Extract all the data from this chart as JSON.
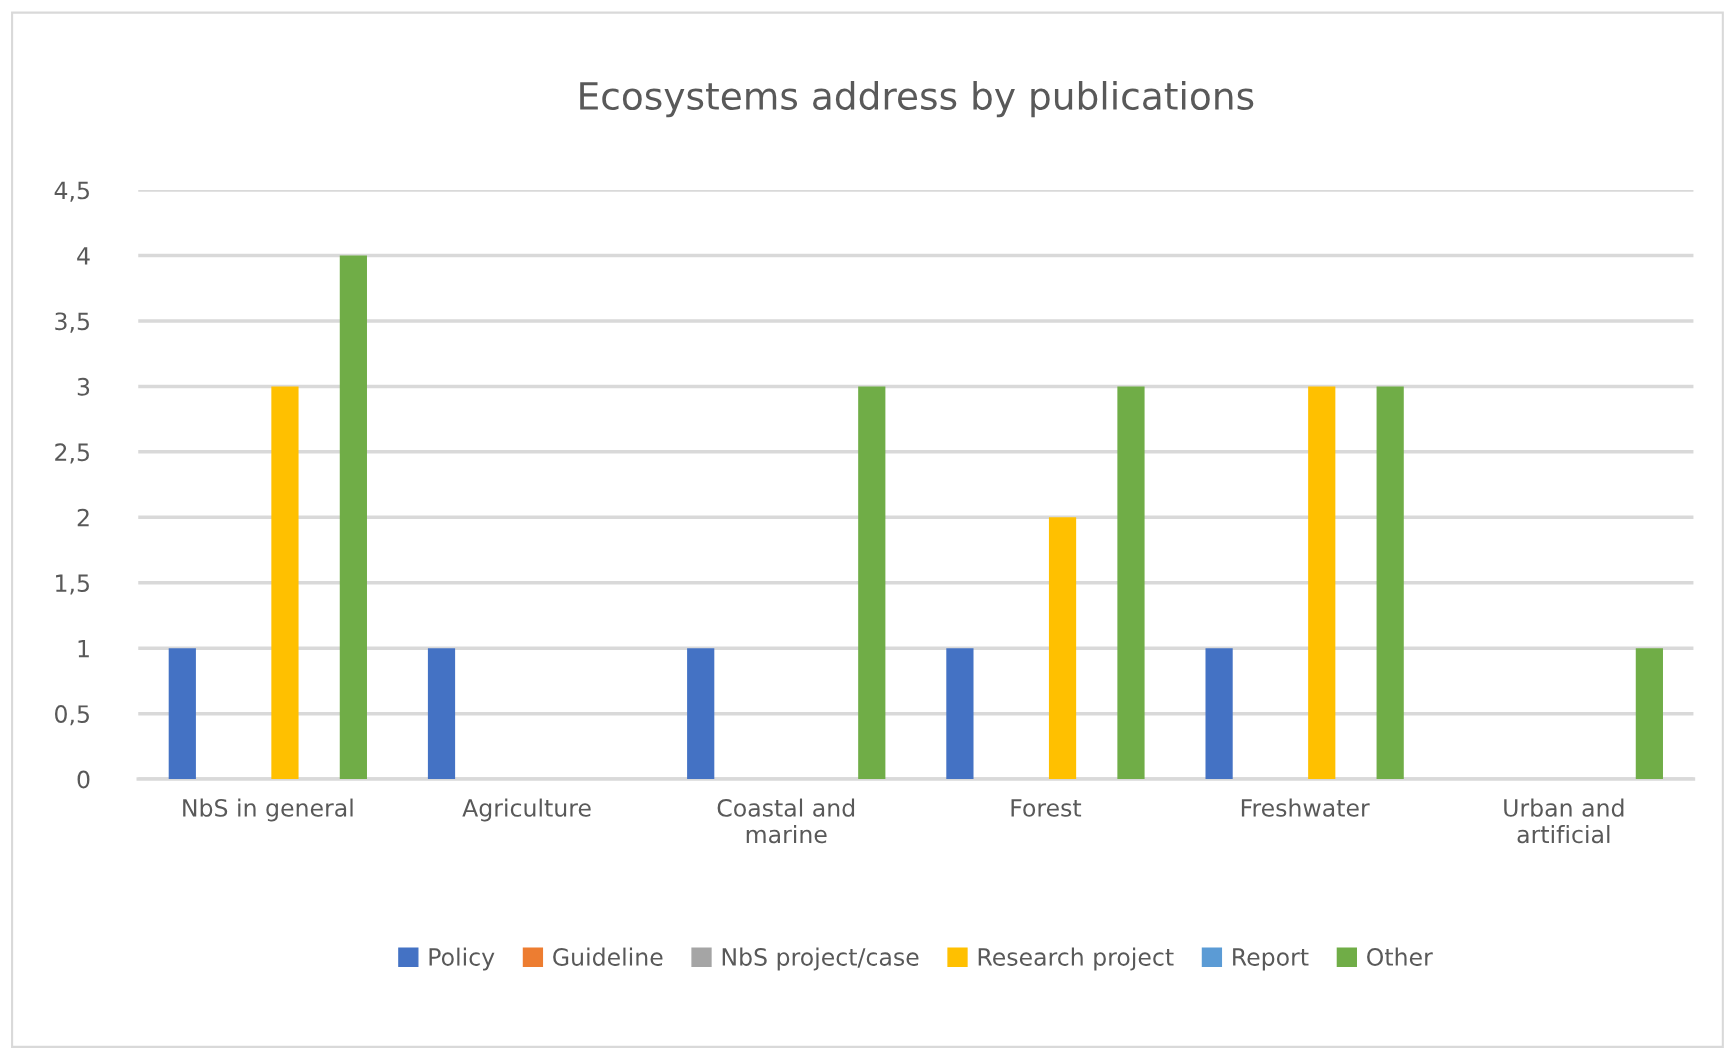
{
  "chart_data": {
    "type": "bar",
    "title": "Ecosystems address by publications",
    "categories": [
      "NbS in general",
      "Agriculture",
      "Coastal and\nmarine",
      "Forest",
      "Freshwater",
      "Urban and\nartificial"
    ],
    "series": [
      {
        "name": "Policy",
        "color": "#4472c4",
        "values": [
          1,
          1,
          1,
          1,
          1,
          0
        ]
      },
      {
        "name": "Guideline",
        "color": "#ed7d31",
        "values": [
          0,
          0,
          0,
          0,
          0,
          0
        ]
      },
      {
        "name": "NbS project/case",
        "color": "#a5a5a5",
        "values": [
          0,
          0,
          0,
          0,
          0,
          0
        ]
      },
      {
        "name": "Research project",
        "color": "#ffc000",
        "values": [
          3,
          0,
          0,
          2,
          3,
          0
        ]
      },
      {
        "name": "Report",
        "color": "#5b9bd5",
        "values": [
          0,
          0,
          0,
          0,
          0,
          0
        ]
      },
      {
        "name": "Other",
        "color": "#70ad47",
        "values": [
          4,
          0,
          3,
          3,
          3,
          1
        ]
      }
    ],
    "ylim": [
      0,
      4.5
    ],
    "yticks": [
      0,
      {
        "value": 0.5,
        "label": "0,5"
      },
      1,
      {
        "value": 1.5,
        "label": "1,5"
      },
      2,
      {
        "value": 2.5,
        "label": "2,5"
      },
      3,
      {
        "value": 3.5,
        "label": "3,5"
      },
      4,
      {
        "value": 4.5,
        "label": "4,5"
      }
    ],
    "grid": "y",
    "legend": "bottom"
  }
}
